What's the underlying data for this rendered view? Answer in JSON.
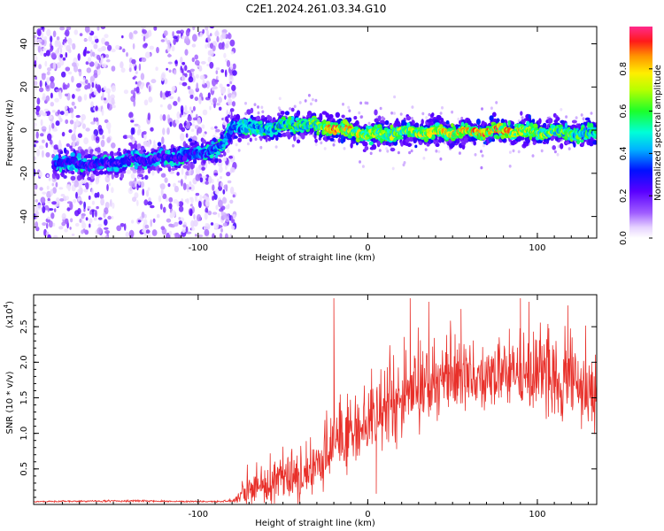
{
  "figure_title": "C2E1.2024.261.03.34.G10",
  "chart_data": [
    {
      "type": "heatmap",
      "title": "C2E1.2024.261.03.34.G10",
      "xlabel": "Height of straight line (km)",
      "ylabel": "Frequency (Hz)",
      "xlim": [
        -197,
        135
      ],
      "ylim": [
        -50,
        48
      ],
      "x_ticks": [
        -100,
        0,
        100
      ],
      "y_ticks": [
        40,
        20,
        0,
        -20,
        -40
      ],
      "x_tick_labels": [
        "-100",
        "0",
        "100"
      ],
      "y_tick_labels": [
        "40",
        "20",
        "0",
        "-20",
        "-40"
      ],
      "colorbar": {
        "label": "Normalized spectral amplitude",
        "range": [
          0.0,
          1.0
        ],
        "ticks": [
          0.0,
          0.2,
          0.4,
          0.6,
          0.8
        ],
        "tick_labels": [
          "0.0",
          "0.2",
          "0.4",
          "0.6",
          "0.8"
        ],
        "colormap": "rainbow (white-purple-blue-cyan-green-yellow-red-magenta)"
      },
      "ridge_center_hz": [
        {
          "x": -180,
          "y": -15
        },
        {
          "x": -160,
          "y": -16
        },
        {
          "x": -140,
          "y": -14
        },
        {
          "x": -120,
          "y": -13
        },
        {
          "x": -100,
          "y": -11
        },
        {
          "x": -85,
          "y": -7
        },
        {
          "x": -80,
          "y": 2
        },
        {
          "x": -60,
          "y": 1
        },
        {
          "x": -40,
          "y": 3
        },
        {
          "x": -20,
          "y": 1
        },
        {
          "x": 0,
          "y": -2
        },
        {
          "x": 20,
          "y": -1
        },
        {
          "x": 40,
          "y": -1
        },
        {
          "x": 60,
          "y": -1
        },
        {
          "x": 80,
          "y": 0
        },
        {
          "x": 100,
          "y": -1
        },
        {
          "x": 120,
          "y": -1
        },
        {
          "x": 133,
          "y": -2
        }
      ],
      "ridge_peak_amplitude": [
        {
          "x": -180,
          "a": 0.35
        },
        {
          "x": -120,
          "a": 0.3
        },
        {
          "x": -85,
          "a": 0.45
        },
        {
          "x": -60,
          "a": 0.55
        },
        {
          "x": -30,
          "a": 0.7
        },
        {
          "x": -20,
          "a": 0.95
        },
        {
          "x": 0,
          "a": 0.75
        },
        {
          "x": 40,
          "a": 0.8
        },
        {
          "x": 75,
          "a": 0.95
        },
        {
          "x": 100,
          "a": 0.75
        },
        {
          "x": 133,
          "a": 0.6
        }
      ],
      "noise_region_x": [
        -197,
        -78
      ]
    },
    {
      "type": "line",
      "xlabel": "Height of straight line (km)",
      "ylabel": "SNR (10 * v/v)",
      "multiplier_label": "(x10",
      "multiplier_exponent": "4",
      "xlim": [
        -197,
        135
      ],
      "ylim": [
        0,
        2.95
      ],
      "x_ticks": [
        -100,
        0,
        100
      ],
      "y_ticks": [
        0.5,
        1.0,
        1.5,
        2.0,
        2.5
      ],
      "x_tick_labels": [
        "-100",
        "0",
        "100"
      ],
      "y_tick_labels": [
        "0.5",
        "1.0",
        "1.5",
        "2.0",
        "2.5"
      ],
      "series": [
        {
          "color": "#e8302a",
          "envelope": [
            {
              "x": -197,
              "mean": 0.04,
              "spread": 0.01
            },
            {
              "x": -140,
              "mean": 0.05,
              "spread": 0.015
            },
            {
              "x": -90,
              "mean": 0.04,
              "spread": 0.01
            },
            {
              "x": -78,
              "mean": 0.06,
              "spread": 0.03
            },
            {
              "x": -72,
              "mean": 0.18,
              "spread": 0.25
            },
            {
              "x": -60,
              "mean": 0.25,
              "spread": 0.3
            },
            {
              "x": -45,
              "mean": 0.35,
              "spread": 0.4
            },
            {
              "x": -35,
              "mean": 0.4,
              "spread": 0.35
            },
            {
              "x": -25,
              "mean": 0.65,
              "spread": 0.45
            },
            {
              "x": -18,
              "mean": 0.9,
              "spread": 0.5
            },
            {
              "x": -10,
              "mean": 1.0,
              "spread": 0.5
            },
            {
              "x": 0,
              "mean": 1.15,
              "spread": 0.55
            },
            {
              "x": 15,
              "mean": 1.4,
              "spread": 0.6
            },
            {
              "x": 30,
              "mean": 1.65,
              "spread": 0.6
            },
            {
              "x": 50,
              "mean": 1.8,
              "spread": 0.55
            },
            {
              "x": 70,
              "mean": 1.75,
              "spread": 0.5
            },
            {
              "x": 85,
              "mean": 1.85,
              "spread": 0.5
            },
            {
              "x": 100,
              "mean": 1.8,
              "spread": 0.6
            },
            {
              "x": 120,
              "mean": 1.7,
              "spread": 0.6
            },
            {
              "x": 135,
              "mean": 1.6,
              "spread": 0.6
            }
          ],
          "spikes": [
            {
              "x": -20,
              "y": 2.9
            },
            {
              "x": 25,
              "y": 2.9
            },
            {
              "x": 36,
              "y": 2.85
            },
            {
              "x": 55,
              "y": 2.75
            },
            {
              "x": 90,
              "y": 2.9
            },
            {
              "x": 95,
              "y": 2.85
            },
            {
              "x": 118,
              "y": 2.8
            },
            {
              "x": 5,
              "y": 0.15
            }
          ]
        }
      ]
    }
  ]
}
